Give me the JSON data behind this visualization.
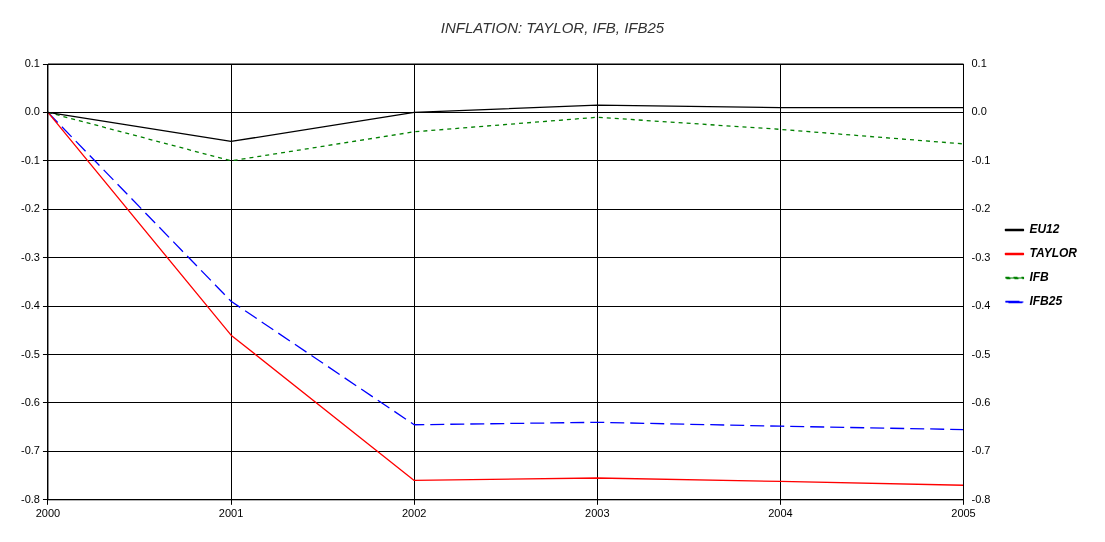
{
  "chart_data": {
    "type": "line",
    "title": "INFLATION: TAYLOR, IFB, IFB25",
    "x": [
      2000,
      2001,
      2002,
      2003,
      2004,
      2005
    ],
    "series": [
      {
        "name": "EU12",
        "color": "#000000",
        "line_style": "solid",
        "values": [
          0,
          -0.06,
          0.0,
          0.015,
          0.01,
          0.01
        ]
      },
      {
        "name": "TAYLOR",
        "color": "#ff0000",
        "line_style": "solid",
        "values": [
          0,
          -0.46,
          -0.76,
          -0.755,
          -0.762,
          -0.77
        ]
      },
      {
        "name": "IFB",
        "color": "#008000",
        "line_style": "dotted",
        "values": [
          0,
          -0.1,
          -0.04,
          -0.01,
          -0.035,
          -0.065
        ]
      },
      {
        "name": "IFB25",
        "color": "#0000ff",
        "line_style": "dashed",
        "values": [
          0,
          -0.39,
          -0.645,
          -0.64,
          -0.648,
          -0.655
        ]
      }
    ],
    "xlim": [
      2000,
      2005
    ],
    "xticks": [
      2000,
      2001,
      2002,
      2003,
      2004,
      2005
    ],
    "ylim": [
      -0.8,
      0.1
    ],
    "yticks": [
      {
        "value": -0.8,
        "label": "-0.8"
      },
      {
        "value": -0.7,
        "label": "-0.7"
      },
      {
        "value": -0.6,
        "label": "-0.6"
      },
      {
        "value": -0.5,
        "label": "-0.5"
      },
      {
        "value": -0.4,
        "label": "-0.4"
      },
      {
        "value": -0.3,
        "label": "-0.3"
      },
      {
        "value": -0.2,
        "label": "-0.2"
      },
      {
        "value": -0.1,
        "label": "-0.1"
      },
      {
        "value": 0,
        "label": "0.0"
      },
      {
        "value": 0.1,
        "label": "0.1"
      }
    ],
    "y2lim": [
      -0.8,
      0.1
    ],
    "y2ticks": [
      {
        "value": -0.8,
        "label": "-0.8"
      },
      {
        "value": -0.7,
        "label": "-0.7"
      },
      {
        "value": -0.6,
        "label": "-0.6"
      },
      {
        "value": -0.5,
        "label": "-0.5"
      },
      {
        "value": -0.4,
        "label": "-0.4"
      },
      {
        "value": -0.3,
        "label": "-0.3"
      },
      {
        "value": -0.2,
        "label": "-0.2"
      },
      {
        "value": -0.1,
        "label": "-0.1"
      },
      {
        "value": 0,
        "label": "0.0"
      },
      {
        "value": 0.1,
        "label": "0.1"
      }
    ],
    "grid": true,
    "legend": "right",
    "marker": "none"
  }
}
